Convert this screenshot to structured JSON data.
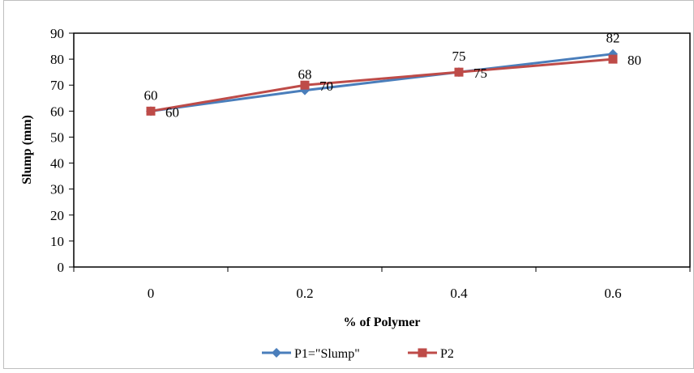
{
  "chart_data": {
    "type": "line",
    "title": "",
    "xlabel": "% of Polymer",
    "ylabel": "Slump (mm)",
    "categories": [
      "0",
      "0.2",
      "0.4",
      "0.6"
    ],
    "ylim": [
      0,
      90
    ],
    "yticks": [
      0,
      10,
      20,
      30,
      40,
      50,
      60,
      70,
      80,
      90
    ],
    "yticks_text": [
      "0",
      "10",
      "20",
      "30",
      "40",
      "50",
      "60",
      "70",
      "80",
      "90"
    ],
    "grid": false,
    "legend_position": "bottom",
    "series": [
      {
        "name": "P1=\"Slump\"",
        "values": [
          60,
          68,
          75,
          82
        ],
        "labels": [
          "60",
          "68",
          "75",
          "82"
        ],
        "color": "#4A7EBB",
        "marker": "diamond",
        "label_position": "above"
      },
      {
        "name": "P2",
        "values": [
          60,
          70,
          75,
          80
        ],
        "labels": [
          "60",
          "70",
          "75",
          "80"
        ],
        "color": "#BE4B48",
        "marker": "square",
        "label_position": "right"
      }
    ]
  }
}
